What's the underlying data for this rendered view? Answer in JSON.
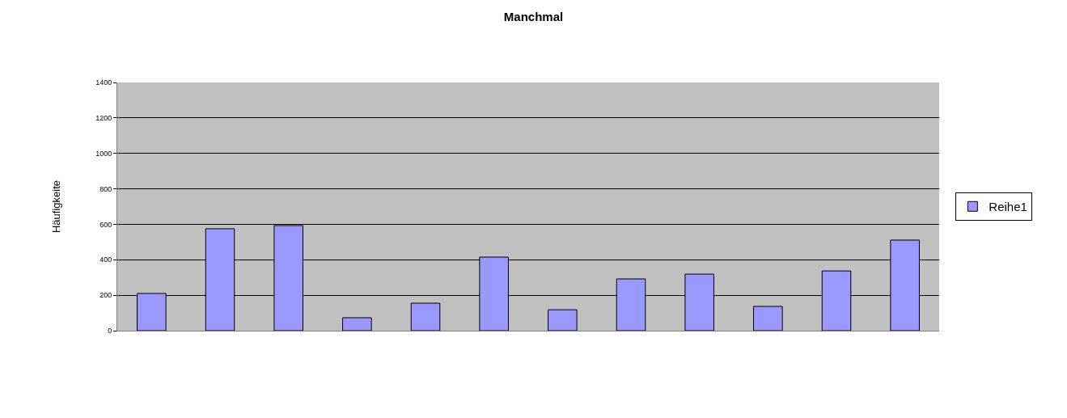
{
  "chart_data": {
    "type": "bar",
    "title": "Manchmal",
    "ylabel": "Häufigkeite",
    "categories": [
      null,
      null,
      null,
      null,
      null,
      null,
      null,
      null,
      null,
      null,
      null,
      null
    ],
    "series": [
      {
        "name": "Reihe1",
        "color": "#9999ff",
        "values": [
          210,
          575,
          593,
          73,
          155,
          415,
          118,
          292,
          319,
          137,
          337,
          511
        ]
      }
    ],
    "ylim": [
      0,
      1400
    ],
    "yticks": [
      0,
      200,
      400,
      600,
      800,
      1000,
      1200,
      1400
    ],
    "grid": "y",
    "legend": "right",
    "tick_labels": "y"
  }
}
